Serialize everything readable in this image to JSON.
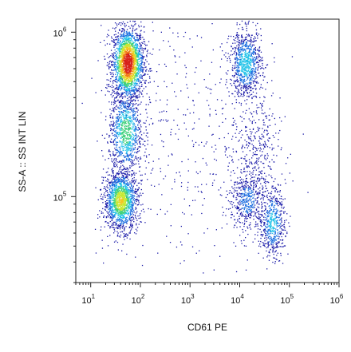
{
  "chart_data": {
    "type": "scatter",
    "title": "",
    "xlabel": "CD61 PE",
    "ylabel": "SS-A :: SS INT LIN",
    "x_scale": "log",
    "y_scale": "log",
    "xlim": [
      5,
      1000000
    ],
    "ylim": [
      30000,
      1200000
    ],
    "grid": false,
    "legend": "none",
    "x_ticks": [
      {
        "base": "10",
        "exp": "1",
        "value": 10
      },
      {
        "base": "10",
        "exp": "2",
        "value": 100
      },
      {
        "base": "10",
        "exp": "3",
        "value": 1000
      },
      {
        "base": "10",
        "exp": "4",
        "value": 10000
      },
      {
        "base": "10",
        "exp": "5",
        "value": 100000
      },
      {
        "base": "10",
        "exp": "6",
        "value": 1000000
      }
    ],
    "y_ticks": [
      {
        "base": "10",
        "exp": "5",
        "value": 100000
      },
      {
        "base": "10",
        "exp": "6",
        "value": 1000000
      }
    ],
    "density_colors": [
      "#1a1aa8",
      "#1c6fe0",
      "#22c3e8",
      "#3fd17a",
      "#c8e832",
      "#f2c81e",
      "#f07a18",
      "#d8221a"
    ],
    "populations": [
      {
        "x_center": 55,
        "y_center": 650000,
        "x_spread_decades": 0.16,
        "y_spread_decades": 0.11,
        "count": 2200,
        "peak_density": 1.0
      },
      {
        "x_center": 50,
        "y_center": 250000,
        "x_spread_decades": 0.17,
        "y_spread_decades": 0.13,
        "count": 900,
        "peak_density": 0.45
      },
      {
        "x_center": 40,
        "y_center": 95000,
        "x_spread_decades": 0.17,
        "y_spread_decades": 0.09,
        "count": 1500,
        "peak_density": 0.62
      },
      {
        "x_center": 13000,
        "y_center": 650000,
        "x_spread_decades": 0.16,
        "y_spread_decades": 0.1,
        "count": 900,
        "peak_density": 0.35
      },
      {
        "x_center": 14000,
        "y_center": 95000,
        "x_spread_decades": 0.18,
        "y_spread_decades": 0.1,
        "count": 500,
        "peak_density": 0.18
      },
      {
        "x_center": 45000,
        "y_center": 70000,
        "x_spread_decades": 0.13,
        "y_spread_decades": 0.11,
        "count": 550,
        "peak_density": 0.3
      },
      {
        "x_center": 20000,
        "y_center": 200000,
        "x_spread_decades": 0.25,
        "y_spread_decades": 0.15,
        "count": 300,
        "peak_density": 0.08
      },
      {
        "x_center": 800,
        "y_center": 250000,
        "x_spread_decades": 0.9,
        "y_spread_decades": 0.45,
        "count": 450,
        "peak_density": 0.02
      }
    ]
  }
}
